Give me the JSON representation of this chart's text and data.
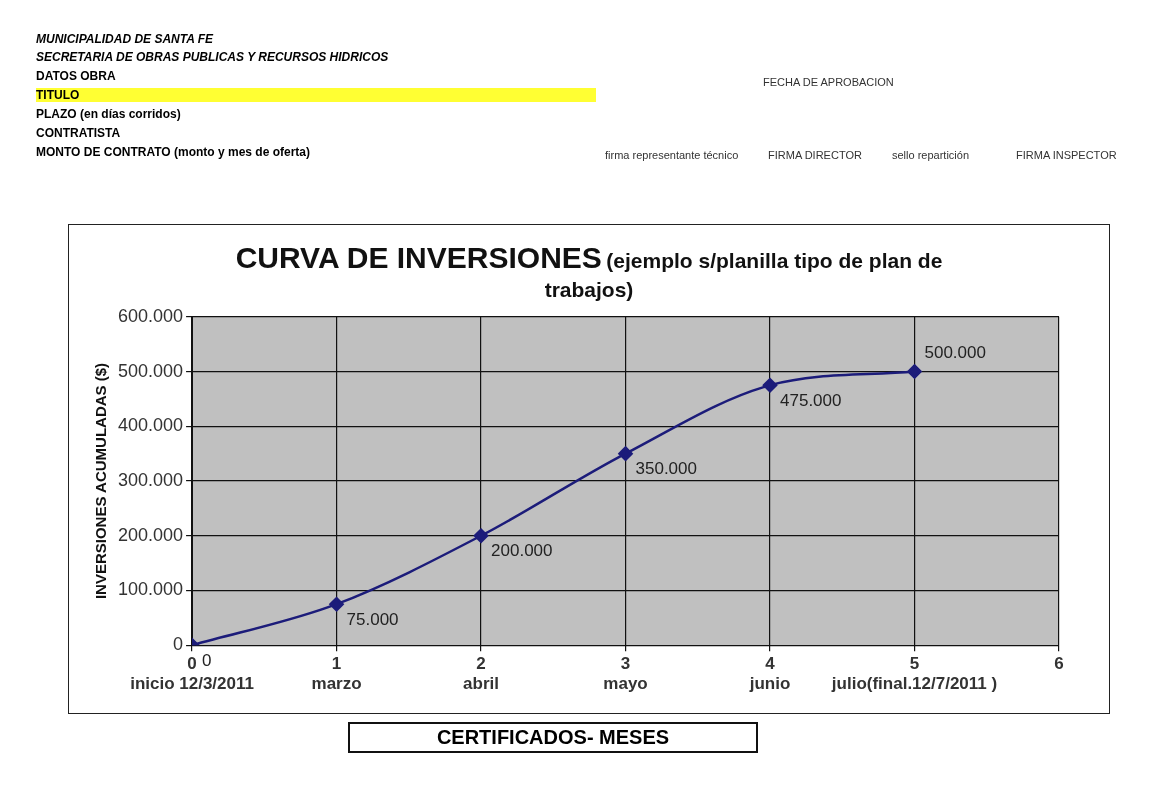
{
  "chart_data": {
    "type": "line",
    "title": "CURVA DE INVERSIONES",
    "subtitle": "(ejemplo s/planilla tipo de plan de trabajos)",
    "ylabel": "INVERSIONES ACUMULADAS ($)",
    "x": [
      0,
      1,
      2,
      3,
      4,
      5
    ],
    "series": [
      {
        "color": "#1c1c7a",
        "values": [
          0,
          75000,
          200000,
          350000,
          475000,
          500000
        ],
        "value_labels": [
          "0",
          "75.000",
          "200.000",
          "350.000",
          "475.000",
          "500.000"
        ]
      }
    ],
    "xlim": [
      0,
      6
    ],
    "xticks": [
      {
        "value": 0,
        "label": "0\ninicio 12/3/2011"
      },
      {
        "value": 1,
        "label": "1\nmarzo"
      },
      {
        "value": 2,
        "label": "2\nabril"
      },
      {
        "value": 3,
        "label": "3\nmayo"
      },
      {
        "value": 4,
        "label": "4\njunio"
      },
      {
        "value": 5,
        "label": "5\njulio(final.12/7/2011 )"
      },
      6
    ],
    "ylim": [
      0,
      600000
    ],
    "yticks": [
      0,
      {
        "value": 100000,
        "label": "100.000"
      },
      {
        "value": 200000,
        "label": "200.000"
      },
      {
        "value": 300000,
        "label": "300.000"
      },
      {
        "value": 400000,
        "label": "400.000"
      },
      {
        "value": 500000,
        "label": "500.000"
      },
      {
        "value": 600000,
        "label": "600.000"
      }
    ],
    "grid": true,
    "legend": false,
    "marker": "diamond",
    "line_style": "solid",
    "annotations": [
      "MUNICIPALIDAD DE SANTA FE",
      "SECRETARIA DE OBRAS PUBLICAS Y RECURSOS HIDRICOS",
      "DATOS OBRA",
      "TITULO",
      "PLAZO (en días corridos)",
      "CONTRATISTA",
      "MONTO DE CONTRATO (monto y mes de oferta)",
      "FECHA DE APROBACION",
      "firma representante técnico",
      "FIRMA DIRECTOR",
      "sello repartición",
      "FIRMA INSPECTOR",
      "CERTIFICADOS- MESES"
    ]
  }
}
